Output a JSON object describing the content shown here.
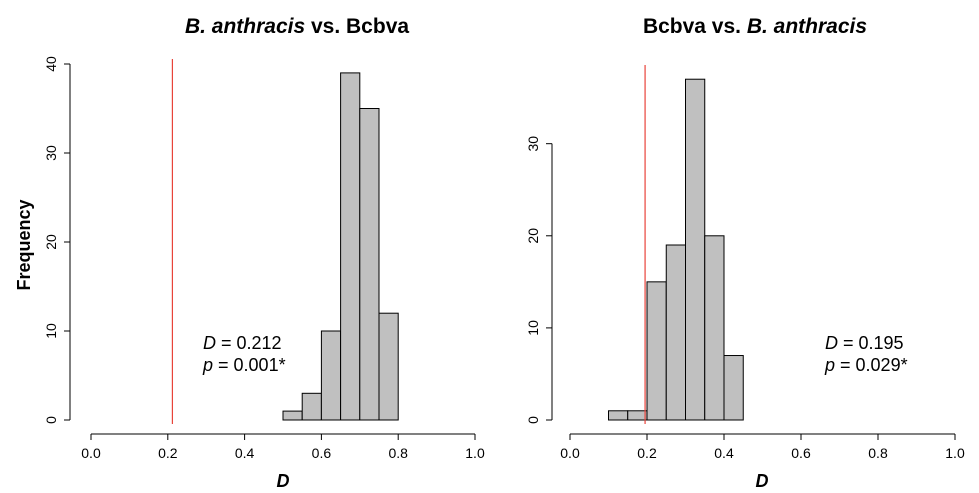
{
  "colors": {
    "bar_fill": "#c0c0c0",
    "bar_stroke": "#000000",
    "ref_line": "#e8443a",
    "axis": "#000000"
  },
  "figure": {
    "ylabel": "Frequency"
  },
  "chart_data": [
    {
      "type": "bar",
      "title_italic": "B. anthracis",
      "title_rest": " vs. Bcbva",
      "xlabel": "D",
      "xlim": [
        0.0,
        1.0
      ],
      "ylim": [
        0,
        40
      ],
      "xticks": [
        "0.0",
        "0.2",
        "0.4",
        "0.6",
        "0.8",
        "1.0"
      ],
      "yticks": [
        "0",
        "10",
        "20",
        "30",
        "40"
      ],
      "bins": [
        {
          "x0": 0.5,
          "x1": 0.55,
          "count": 1
        },
        {
          "x0": 0.55,
          "x1": 0.6,
          "count": 3
        },
        {
          "x0": 0.6,
          "x1": 0.65,
          "count": 10
        },
        {
          "x0": 0.65,
          "x1": 0.7,
          "count": 39
        },
        {
          "x0": 0.7,
          "x1": 0.75,
          "count": 35
        },
        {
          "x0": 0.75,
          "x1": 0.8,
          "count": 12
        }
      ],
      "observed_D": 0.212,
      "annotation": {
        "d_symbol": "D",
        "d_value": " = 0.212",
        "p_symbol": "p",
        "p_value": " = 0.001*"
      }
    },
    {
      "type": "bar",
      "title_rest": "Bcbva vs. ",
      "title_italic": "B. anthracis",
      "xlabel": "D",
      "xlim": [
        0.0,
        1.0
      ],
      "ylim": [
        0,
        38
      ],
      "xticks": [
        "0.0",
        "0.2",
        "0.4",
        "0.6",
        "0.8",
        "1.0"
      ],
      "yticks": [
        "0",
        "10",
        "20",
        "30"
      ],
      "bins": [
        {
          "x0": 0.1,
          "x1": 0.15,
          "count": 1
        },
        {
          "x0": 0.15,
          "x1": 0.2,
          "count": 1
        },
        {
          "x0": 0.2,
          "x1": 0.25,
          "count": 15
        },
        {
          "x0": 0.25,
          "x1": 0.3,
          "count": 19
        },
        {
          "x0": 0.3,
          "x1": 0.35,
          "count": 37
        },
        {
          "x0": 0.35,
          "x1": 0.4,
          "count": 20
        },
        {
          "x0": 0.4,
          "x1": 0.45,
          "count": 7
        }
      ],
      "observed_D": 0.195,
      "annotation": {
        "d_symbol": "D",
        "d_value": " = 0.195",
        "p_symbol": "p",
        "p_value": " = 0.029*"
      }
    }
  ]
}
